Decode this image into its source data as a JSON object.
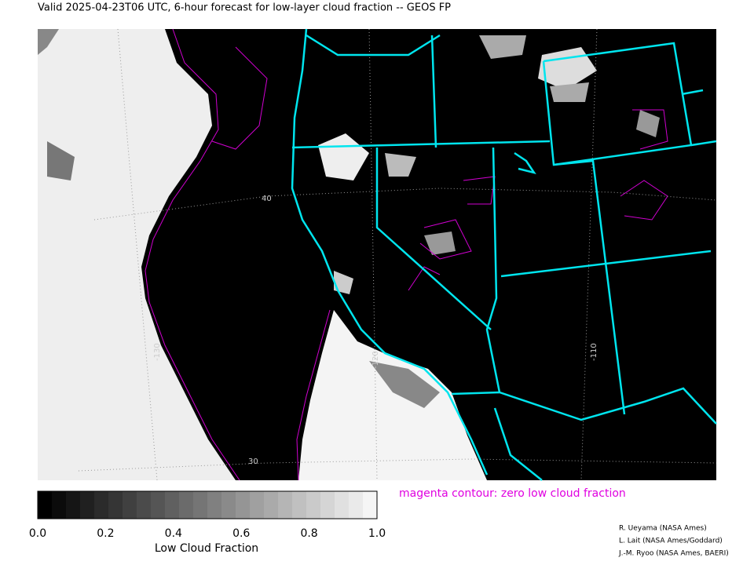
{
  "header": {
    "title": "Valid 2025-04-23T06 UTC, 6-hour forecast for low-layer cloud fraction -- GEOS FP"
  },
  "map": {
    "grid_labels": [
      "40",
      "30",
      "-130",
      "-120",
      "-110"
    ]
  },
  "colorbar": {
    "ticks": [
      "0.0",
      "0.2",
      "0.4",
      "0.6",
      "0.8",
      "1.0"
    ],
    "label": "Low Cloud Fraction"
  },
  "note": "magenta contour: zero low cloud fraction",
  "credits": [
    "R. Ueyama (NASA Ames)",
    "L. Lait (NASA Ames/Goddard)",
    "J.-M. Ryoo (NASA Ames, BAERI)"
  ]
}
